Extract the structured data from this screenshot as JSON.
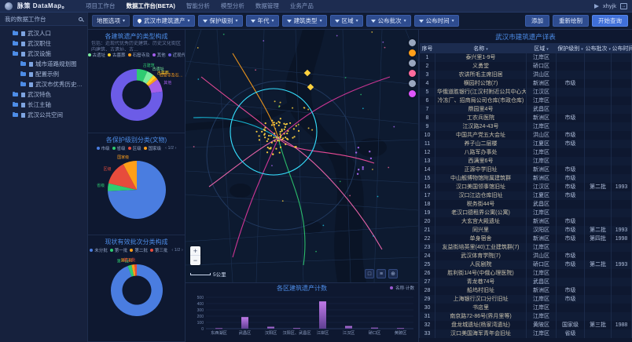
{
  "topbar": {
    "brand": "脉策 DataMap。",
    "items": [
      {
        "label": "项目工作台",
        "active": false
      },
      {
        "label": "数据工作台(BETA)",
        "active": true
      },
      {
        "label": "智能分析",
        "active": false
      },
      {
        "label": "模型分析",
        "active": false
      },
      {
        "label": "数据管理",
        "active": false
      },
      {
        "label": "业务产品",
        "active": false
      }
    ],
    "user": "xhyjk"
  },
  "sidebar": {
    "header": "我的数据工作台",
    "items": [
      {
        "label": "武汉人口",
        "type": "folder",
        "depth": 0,
        "expanded": false,
        "selected": false
      },
      {
        "label": "武汉职住",
        "type": "folder",
        "depth": 0,
        "expanded": false,
        "selected": false
      },
      {
        "label": "武汉设施",
        "type": "folder",
        "depth": 0,
        "expanded": true,
        "selected": false
      },
      {
        "label": "城市道路规划图",
        "type": "doc",
        "depth": 1,
        "expanded": false,
        "selected": false
      },
      {
        "label": "配置示例",
        "type": "doc",
        "depth": 1,
        "expanded": false,
        "selected": false
      },
      {
        "label": "武汉市优秀历史建筑遗产",
        "type": "doc",
        "depth": 1,
        "expanded": false,
        "selected": true
      },
      {
        "label": "武汉特色",
        "type": "folder",
        "depth": 0,
        "expanded": false,
        "selected": false
      },
      {
        "label": "长江主轴",
        "type": "folder",
        "depth": 0,
        "expanded": false,
        "selected": false
      },
      {
        "label": "武汉公共空间",
        "type": "folder",
        "depth": 0,
        "expanded": false,
        "selected": false
      }
    ]
  },
  "filterbar": {
    "map_options": "地图选项",
    "filters": [
      {
        "icon": "pin",
        "label": "武汉市建筑遗产"
      },
      {
        "icon": "funnel",
        "label": "保护级别"
      },
      {
        "icon": "funnel",
        "label": "年代"
      },
      {
        "icon": "funnel",
        "label": "建筑类型"
      },
      {
        "icon": "funnel",
        "label": "区域"
      },
      {
        "icon": "funnel",
        "label": "公布批次"
      },
      {
        "icon": "funnel",
        "label": "公布时间"
      }
    ],
    "actions": {
      "add": "添加",
      "redraw": "重新绘制",
      "query": "开始查询"
    }
  },
  "map": {
    "scale": "5公里",
    "zoom_in": "+",
    "zoom_out": "−",
    "tools": [
      "□",
      "≡",
      "⊕"
    ],
    "markers": [
      {
        "color": "#9aa7bf"
      },
      {
        "color": "#ff9f1a"
      },
      {
        "color": "#9aa7bf"
      },
      {
        "color": "#ff6b9d"
      },
      {
        "color": "#9aa7bf"
      },
      {
        "color": "#e056fd"
      }
    ]
  },
  "chart_data": [
    {
      "type": "donut",
      "title": "各建筑遗产的类型构成",
      "subtitle": "包括：近现代优秀历史建筑、历史文化街区内建筑、古遗址、古…",
      "legend_position": "top",
      "pager": "1/3",
      "colors": [
        "#2ecc71",
        "#7bed9f",
        "#ffd32a",
        "#ff9f1a",
        "#a55eea",
        "#6c5ce7"
      ],
      "series": [
        {
          "name": "古建筑",
          "value": 45
        },
        {
          "name": "古遗址",
          "value": 30
        },
        {
          "name": "古墓葬",
          "value": 15
        },
        {
          "name": "石窟寺及石刻",
          "value": 10
        },
        {
          "name": "其他",
          "value": 55
        },
        {
          "name": "近现代重要史迹及代表性建筑",
          "value": 520
        }
      ]
    },
    {
      "type": "pie",
      "title": "各保护级别分类(文物)",
      "legend_position": "top",
      "pager": "1/2",
      "colors": [
        "#4a7de0",
        "#2ecc71",
        "#e74c3c",
        "#ff9f1a"
      ],
      "series": [
        {
          "name": "市级",
          "value": 480
        },
        {
          "name": "省级",
          "value": 28
        },
        {
          "name": "区级",
          "value": 88
        },
        {
          "name": "国家级",
          "value": 50
        }
      ]
    },
    {
      "type": "donut",
      "title": "现状有效批次分类构成",
      "legend_position": "top",
      "pager": "1/2",
      "colors": [
        "#4a7de0",
        "#2ecc71",
        "#ff9f1a",
        "#e74c3c"
      ],
      "series": [
        {
          "name": "未分批",
          "value": 610
        },
        {
          "name": "第一批",
          "value": 16
        },
        {
          "name": "第二批",
          "value": 12
        },
        {
          "name": "第三批",
          "value": 9
        }
      ]
    },
    {
      "type": "bar",
      "title": "各区建筑遗产计数",
      "legend": "名称·计数",
      "color": "#9b59d0",
      "categories": [
        "东西湖区",
        "武昌区",
        "汉阳区",
        "汉阳区、武昌区",
        "江岸区",
        "江汉区",
        "硚口区",
        "黄陂区"
      ],
      "values": [
        8,
        185,
        30,
        10,
        435,
        42,
        16,
        9
      ],
      "ylim": [
        0,
        500
      ],
      "yticks": [
        0,
        100,
        200,
        300,
        400,
        500
      ]
    }
  ],
  "table": {
    "title": "武汉市建筑遗产详表",
    "columns": [
      "序号",
      "名称",
      "区域",
      "保护级别",
      "公布批次",
      "公布时间"
    ],
    "rows": [
      {
        "idx": 1,
        "name": "泰兴里1-9号",
        "district": "江岸区",
        "level": "",
        "batch": "",
        "year": ""
      },
      {
        "idx": 2,
        "name": "义勇堂",
        "district": "硚口区",
        "level": "",
        "batch": "",
        "year": ""
      },
      {
        "idx": 3,
        "name": "农讲所毛主席旧居",
        "district": "洪山区",
        "level": "",
        "batch": "",
        "year": ""
      },
      {
        "idx": 4,
        "name": "横园村公馆(7)",
        "district": "新洲区",
        "level": "市级",
        "batch": "",
        "year": ""
      },
      {
        "idx": 5,
        "name": "华俄道胜银行(江汉村附近公共中心大楼)",
        "district": "江汉区",
        "level": "",
        "batch": "",
        "year": ""
      },
      {
        "idx": 6,
        "name": "冷冻厂、招商局公司仓库(市政仓库)",
        "district": "江岸区",
        "level": "",
        "batch": "",
        "year": ""
      },
      {
        "idx": 7,
        "name": "鼎园里4号",
        "district": "武昌区",
        "level": "",
        "batch": "",
        "year": ""
      },
      {
        "idx": 8,
        "name": "工农兵医院",
        "district": "新洲区",
        "level": "市级",
        "batch": "",
        "year": ""
      },
      {
        "idx": 9,
        "name": "江汉路24-43号",
        "district": "江岸区",
        "level": "",
        "batch": "",
        "year": ""
      },
      {
        "idx": 10,
        "name": "中国共产党五大会址",
        "district": "洪山区",
        "level": "市级",
        "batch": "",
        "year": ""
      },
      {
        "idx": 11,
        "name": "养子山二层楼",
        "district": "江夏区",
        "level": "市级",
        "batch": "",
        "year": ""
      },
      {
        "idx": 12,
        "name": "八路军办事处",
        "district": "江岸区",
        "level": "",
        "batch": "",
        "year": ""
      },
      {
        "idx": 13,
        "name": "西满里6号",
        "district": "江岸区",
        "level": "",
        "batch": "",
        "year": ""
      },
      {
        "idx": 14,
        "name": "正源中学旧址",
        "district": "新洲区",
        "level": "市级",
        "batch": "",
        "year": ""
      },
      {
        "idx": 15,
        "name": "中山舰博物馆附属建筑群",
        "district": "新洲区",
        "level": "市级",
        "batch": "",
        "year": ""
      },
      {
        "idx": 16,
        "name": "汉口美国领事馆旧址",
        "district": "江汉区",
        "level": "市级",
        "batch": "第二批",
        "year": "1993"
      },
      {
        "idx": 17,
        "name": "汉口江边仓库旧址",
        "district": "江夏区",
        "level": "市级",
        "batch": "",
        "year": ""
      },
      {
        "idx": 18,
        "name": "税务街44号",
        "district": "武昌区",
        "level": "",
        "batch": "",
        "year": ""
      },
      {
        "idx": 19,
        "name": "老汉口德租界公寓(公寓)",
        "district": "江岸区",
        "level": "",
        "batch": "",
        "year": ""
      },
      {
        "idx": 20,
        "name": "大玄宫大殿遗址",
        "district": "新洲区",
        "level": "市级",
        "batch": "",
        "year": ""
      },
      {
        "idx": 21,
        "name": "同兴里",
        "district": "汉阳区",
        "level": "市级",
        "batch": "第二批",
        "year": "1993"
      },
      {
        "idx": 22,
        "name": "单身宿舍",
        "district": "新洲区",
        "level": "市级",
        "batch": "第四批",
        "year": "1998"
      },
      {
        "idx": 23,
        "name": "友益街培英里(40)工业建筑群(7)",
        "district": "江岸区",
        "level": "",
        "batch": "",
        "year": ""
      },
      {
        "idx": 24,
        "name": "武汉体育学院(7)",
        "district": "洪山区",
        "level": "市级",
        "batch": "",
        "year": ""
      },
      {
        "idx": 25,
        "name": "人民剧院",
        "district": "硚口区",
        "level": "市级",
        "batch": "第二批",
        "year": "1993"
      },
      {
        "idx": 26,
        "name": "胜利街1/4号(中俄心理医院)",
        "district": "江岸区",
        "level": "",
        "batch": "",
        "year": ""
      },
      {
        "idx": 27,
        "name": "青龙巷74号",
        "district": "武昌区",
        "level": "",
        "batch": "",
        "year": ""
      },
      {
        "idx": 28,
        "name": "船坞村旧址",
        "district": "新洲区",
        "level": "市级",
        "batch": "",
        "year": ""
      },
      {
        "idx": 29,
        "name": "上海银行汉口分行旧址",
        "district": "江岸区",
        "level": "市级",
        "batch": "",
        "year": ""
      },
      {
        "idx": 30,
        "name": "书店里",
        "district": "江岸区",
        "level": "",
        "batch": "",
        "year": ""
      },
      {
        "idx": 31,
        "name": "南京路72-86号(界月里等)",
        "district": "江岸区",
        "level": "",
        "batch": "",
        "year": ""
      },
      {
        "idx": 32,
        "name": "盘龙城遗址(杨家湾遗址)",
        "district": "黄陂区",
        "level": "国家级",
        "batch": "第三批",
        "year": "1988"
      },
      {
        "idx": 33,
        "name": "汉口美国海军青年会旧址",
        "district": "江岸区",
        "level": "省级",
        "batch": "",
        "year": ""
      }
    ]
  }
}
